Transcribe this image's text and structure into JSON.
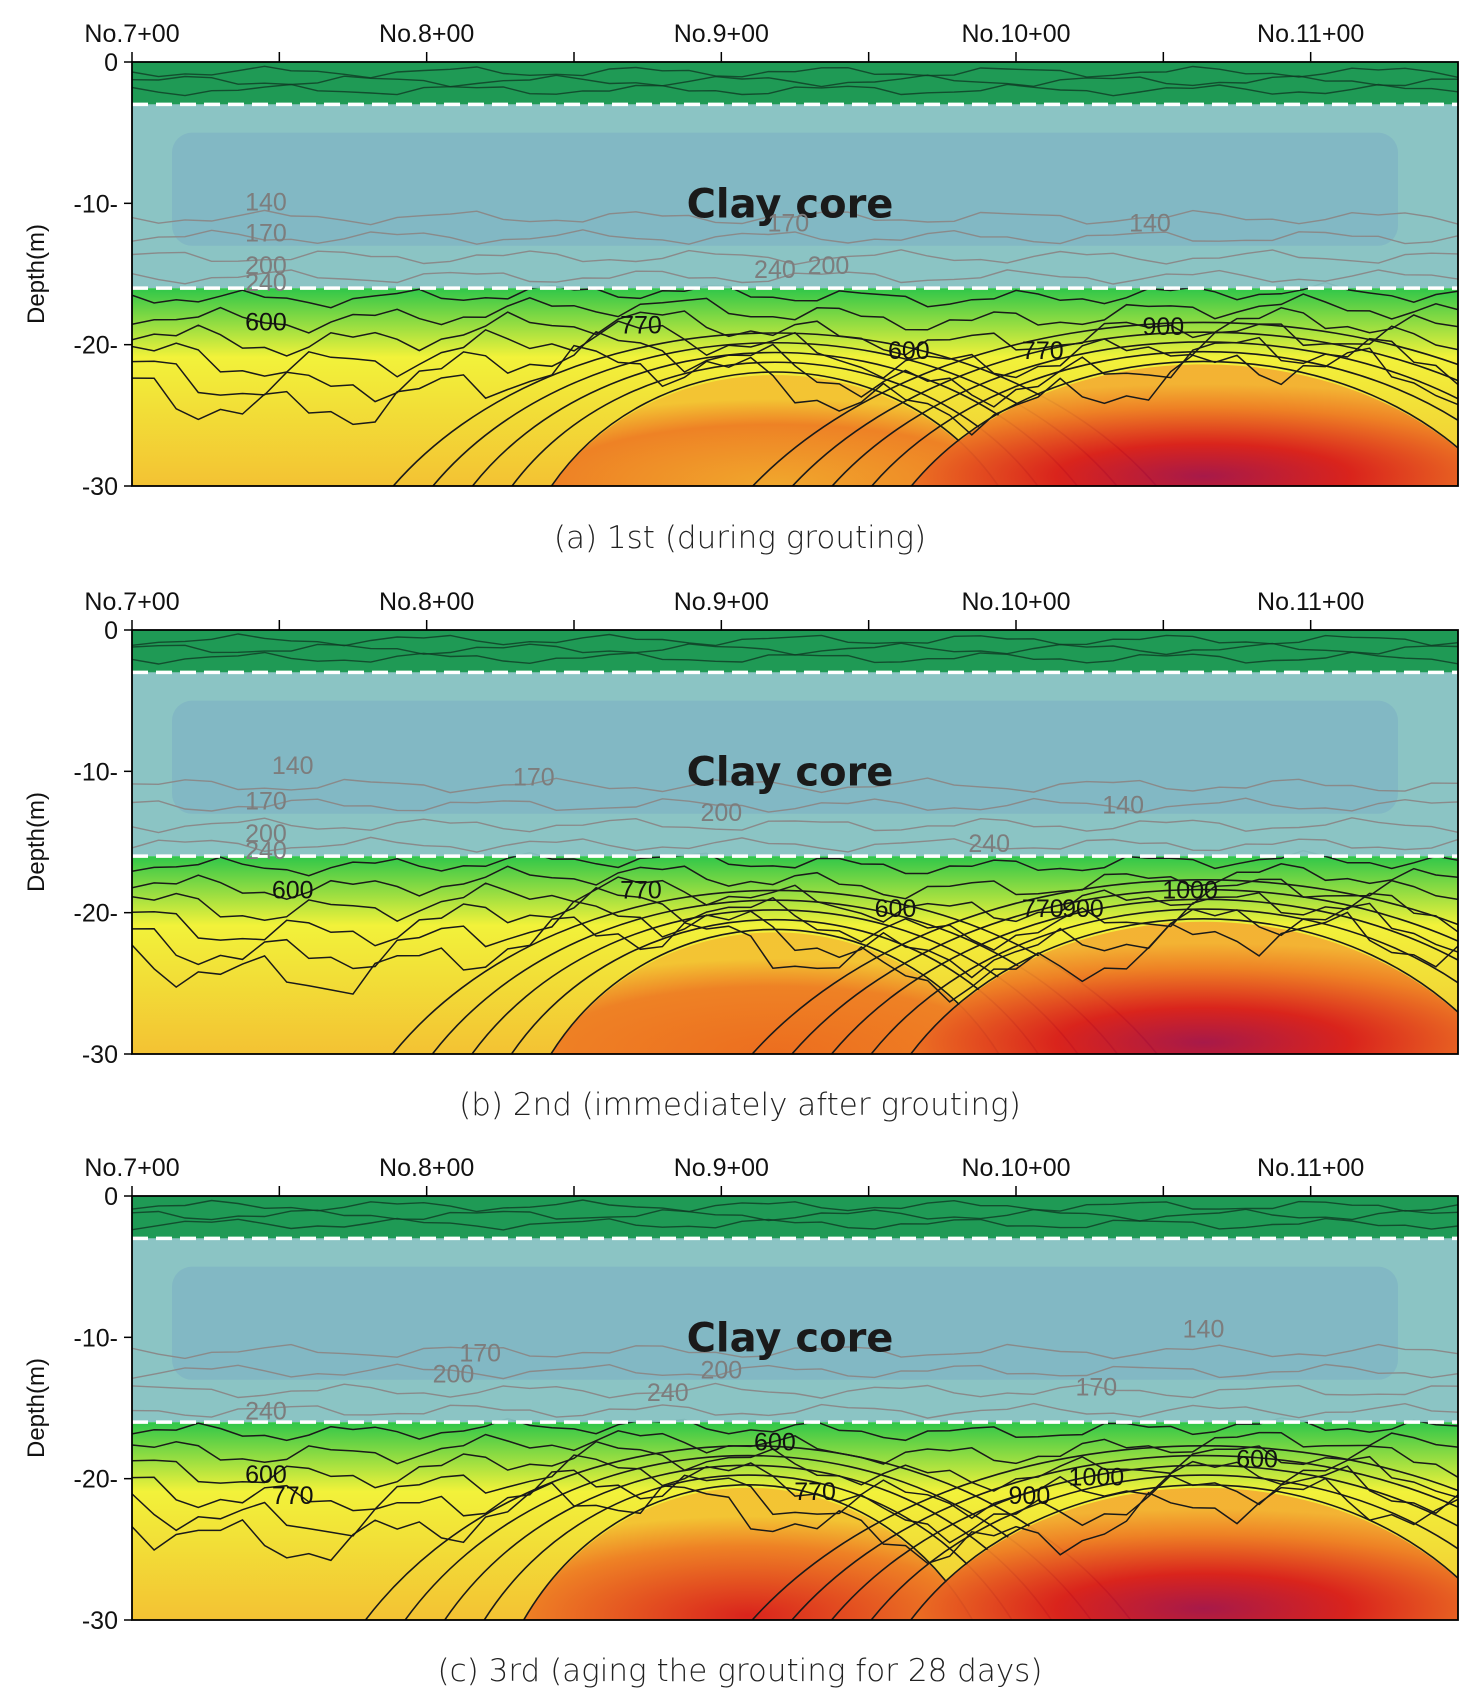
{
  "chart_data": [
    {
      "type": "heatmap",
      "caption": "(a) 1st (during grouting)",
      "stations": [
        "No.7+00",
        "No.8+00",
        "No.9+00",
        "No.10+00",
        "No.11+00"
      ],
      "ylabel": "Depth(m)",
      "yticks": [
        "0",
        "-10-",
        "-20-",
        "-30"
      ],
      "ylim": [
        -30,
        0
      ],
      "region_label": "Clay core",
      "clay_core_depth": [
        -3,
        -16
      ],
      "contour_labels_core": [
        "140",
        "170",
        "200",
        "240",
        "170",
        "240",
        "200",
        "140"
      ],
      "contour_labels_bottom": [
        "600",
        "770",
        "600",
        "770",
        "900"
      ],
      "high_zone_peaks": [
        {
          "station": 9.4,
          "top_depth": -20
        },
        {
          "station": 11.0,
          "top_depth": -19
        }
      ]
    },
    {
      "type": "heatmap",
      "caption": "(b) 2nd (immediately after grouting)",
      "stations": [
        "No.7+00",
        "No.8+00",
        "No.9+00",
        "No.10+00",
        "No.11+00"
      ],
      "ylabel": "Depth(m)",
      "yticks": [
        "0",
        "-10-",
        "-20-",
        "-30"
      ],
      "ylim": [
        -30,
        0
      ],
      "region_label": "Clay core",
      "clay_core_depth": [
        -3,
        -16
      ],
      "contour_labels_core": [
        "140",
        "170",
        "200",
        "240",
        "170",
        "140",
        "200",
        "240"
      ],
      "contour_labels_bottom": [
        "600",
        "770",
        "600",
        "770",
        "900",
        "1000"
      ],
      "high_zone_peaks": [
        {
          "station": 9.4,
          "top_depth": -19
        },
        {
          "station": 11.0,
          "top_depth": -18
        }
      ]
    },
    {
      "type": "heatmap",
      "caption": "(c) 3rd (aging the grouting for 28 days)",
      "stations": [
        "No.7+00",
        "No.8+00",
        "No.9+00",
        "No.10+00",
        "No.11+00"
      ],
      "ylabel": "Depth(m)",
      "yticks": [
        "0",
        "-10-",
        "-20-",
        "-30"
      ],
      "ylim": [
        -30,
        0
      ],
      "region_label": "Clay core",
      "clay_core_depth": [
        -3,
        -16
      ],
      "contour_labels_core": [
        "170",
        "200",
        "240",
        "200",
        "170",
        "140",
        "240"
      ],
      "contour_labels_bottom": [
        "600",
        "770",
        "600",
        "770",
        "900",
        "1000",
        "600"
      ],
      "high_zone_peaks": [
        {
          "station": 9.3,
          "top_depth": -18
        },
        {
          "station": 11.0,
          "top_depth": -18
        }
      ]
    }
  ],
  "colors": {
    "top_layer": "#1f9a55",
    "clay_core": "#86c2c2",
    "low": "#2fc64a",
    "mid": "#f2f23a",
    "high": "#ee7d24",
    "very_high": "#d81b1b",
    "peak": "#a3104a",
    "contour_dark": "#1a1a1a",
    "contour_core": "#8a8a8a",
    "core_boundary": "#ffffff"
  }
}
